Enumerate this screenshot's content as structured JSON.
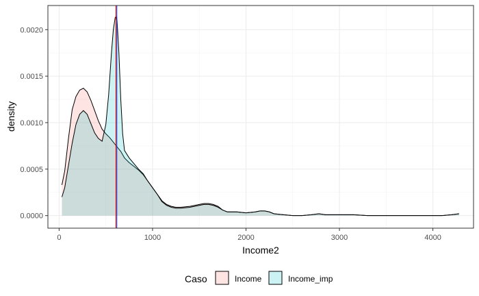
{
  "chart_data": {
    "type": "area",
    "title": "",
    "xlabel": "Income2",
    "ylabel": "density",
    "xlim": [
      -120,
      4435
    ],
    "ylim": [
      -0.000135,
      0.00226
    ],
    "x_ticks": [
      0,
      1000,
      2000,
      3000,
      4000
    ],
    "x_tick_labels": [
      "0",
      "1000",
      "2000",
      "3000",
      "4000"
    ],
    "y_ticks": [
      0,
      0.0005,
      0.001,
      0.0015,
      0.002
    ],
    "y_tick_labels": [
      "0.0000",
      "0.0005",
      "0.0010",
      "0.0015",
      "0.0020"
    ],
    "grid": true,
    "legend": {
      "title": "Caso",
      "position": "bottom"
    },
    "series": [
      {
        "name": "Income",
        "fill": "#F8766D",
        "x": [
          30,
          60,
          100,
          140,
          180,
          220,
          260,
          300,
          340,
          380,
          420,
          460,
          500,
          540,
          580,
          620,
          660,
          700,
          750,
          800,
          850,
          900,
          950,
          1000,
          1050,
          1100,
          1150,
          1200,
          1250,
          1300,
          1400,
          1500,
          1550,
          1600,
          1650,
          1700,
          1750,
          1800,
          1900,
          2000,
          2100,
          2150,
          2200,
          2250,
          2300,
          2400,
          2500,
          2600,
          2700,
          2780,
          2850,
          2950,
          3050,
          3150,
          3300,
          3500,
          3700,
          3900,
          4100,
          4200,
          4280
        ],
        "values": [
          0.00033,
          0.00048,
          0.00083,
          0.00114,
          0.00128,
          0.00135,
          0.00137,
          0.00133,
          0.00124,
          0.00113,
          0.00102,
          0.00093,
          0.00088,
          0.00084,
          0.00079,
          0.00074,
          0.00069,
          0.00062,
          0.00057,
          0.00053,
          0.00049,
          0.00044,
          0.00037,
          0.0003,
          0.00023,
          0.00016,
          0.00012,
          0.0001,
          9e-05,
          9e-05,
          0.0001,
          0.00012,
          0.00013,
          0.00013,
          0.00012,
          0.0001,
          6e-05,
          4e-05,
          4e-05,
          3e-05,
          4e-05,
          5e-05,
          5e-05,
          4e-05,
          2e-05,
          1e-05,
          0.0,
          0.0,
          1e-05,
          2e-05,
          1e-05,
          1e-05,
          1e-05,
          1e-05,
          0.0,
          0.0,
          0.0,
          0.0,
          0.0,
          1e-05,
          2e-05
        ]
      },
      {
        "name": "Income_imp",
        "fill": "#00BFC4",
        "x": [
          30,
          60,
          100,
          140,
          180,
          220,
          260,
          300,
          340,
          380,
          420,
          460,
          500,
          530,
          560,
          580,
          600,
          610,
          620,
          640,
          660,
          680,
          700,
          750,
          800,
          850,
          900,
          950,
          1000,
          1050,
          1100,
          1150,
          1200,
          1250,
          1300,
          1400,
          1500,
          1550,
          1600,
          1650,
          1700,
          1750,
          1800,
          1900,
          2000,
          2100,
          2150,
          2200,
          2250,
          2300,
          2400,
          2500,
          2600,
          2700,
          2780,
          2850,
          2950,
          3050,
          3150,
          3300,
          3500,
          3700,
          3900,
          4100,
          4200,
          4280
        ],
        "values": [
          0.0002,
          0.0003,
          0.00054,
          0.00078,
          0.00098,
          0.00109,
          0.00113,
          0.00109,
          0.00099,
          0.00089,
          0.00083,
          0.0008,
          0.00098,
          0.0013,
          0.00175,
          0.002,
          0.00213,
          0.00214,
          0.0021,
          0.00175,
          0.00125,
          0.00088,
          0.0007,
          0.00062,
          0.00056,
          0.0005,
          0.00045,
          0.00037,
          0.0003,
          0.00023,
          0.00015,
          0.00011,
          9e-05,
          8e-05,
          8e-05,
          9e-05,
          0.00011,
          0.00012,
          0.00012,
          0.00011,
          9e-05,
          6e-05,
          4e-05,
          4e-05,
          3e-05,
          4e-05,
          5e-05,
          5e-05,
          4e-05,
          2e-05,
          1e-05,
          0.0,
          0.0,
          1e-05,
          2e-05,
          1e-05,
          1e-05,
          1e-05,
          1e-05,
          0.0,
          0.0,
          0.0,
          0.0,
          0.0,
          1e-05,
          2e-05
        ]
      }
    ],
    "vlines": [
      {
        "x": 608,
        "color": "#d40000"
      },
      {
        "x": 618,
        "color": "#2b2bd4"
      }
    ]
  }
}
